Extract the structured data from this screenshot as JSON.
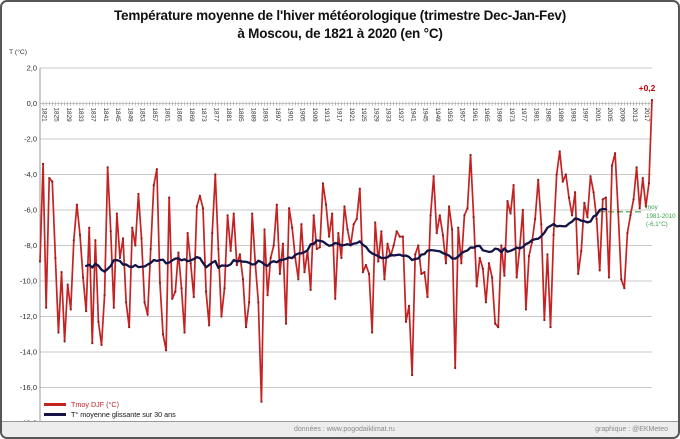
{
  "title": {
    "line1": "Température moyenne de l'hiver météorologique (trimestre Dec-Jan-Fev)",
    "line2": "à Moscou, de 1821 à 2020 (en °C)"
  },
  "y_unit_label": "T (°C)",
  "footer": {
    "left": "données : www.pogodaiklimat.ru",
    "right": "graphique : @EKMeteo"
  },
  "legend": {
    "items": [
      {
        "label": "Tmoy DJF (°C)",
        "color": "#c42323"
      },
      {
        "label": "T° moyenne glissante sur 30 ans",
        "color": "#131347"
      }
    ]
  },
  "chart_data": {
    "type": "line",
    "title": "Température moyenne de l'hiver météorologique (trimestre Dec-Jan-Fev) à Moscou, de 1821 à 2020 (en °C)",
    "grid": "horizontal",
    "legend_position": "bottom-left",
    "x_start": 1821,
    "x_end": 2020,
    "x_tick_step": 4,
    "x_tick_labels": [
      "1821",
      "1825",
      "1829",
      "1833",
      "1837",
      "1841",
      "1845",
      "1849",
      "1853",
      "1857",
      "1861",
      "1865",
      "1869",
      "1873",
      "1877",
      "1881",
      "1885",
      "1889",
      "1893",
      "1897",
      "1901",
      "1905",
      "1909",
      "1913",
      "1917",
      "1921",
      "1925",
      "1929",
      "1933",
      "1937",
      "1941",
      "1945",
      "1949",
      "1953",
      "1957",
      "1961",
      "1965",
      "1969",
      "1973",
      "1977",
      "1981",
      "1985",
      "1989",
      "1993",
      "1997",
      "2001",
      "2005",
      "2009",
      "2013",
      "2017"
    ],
    "ylim": [
      -18,
      2
    ],
    "y_tick_step": 2,
    "y_tick_labels": [
      "2,0",
      "0,0",
      "-2,0",
      "-4,0",
      "-6,0",
      "-8,0",
      "-10,0",
      "-12,0",
      "-14,0",
      "-16,0",
      "-18,0"
    ],
    "series": [
      {
        "name": "Tmoy DJF (°C)",
        "color": "#c42323",
        "marker_color": "#8f1a1a",
        "values": [
          -8.9,
          -3.4,
          -11.5,
          -4.2,
          -4.4,
          -8.7,
          -12.9,
          -9.5,
          -13.4,
          -10.2,
          -11.6,
          -7.7,
          -5.7,
          -7.4,
          -9.8,
          -11.7,
          -7.0,
          -13.5,
          -7.7,
          -12.3,
          -13.6,
          -10.8,
          -3.6,
          -7.2,
          -11.5,
          -6.2,
          -8.7,
          -7.6,
          -11.2,
          -12.6,
          -7.0,
          -8.0,
          -5.1,
          -7.6,
          -11.2,
          -11.9,
          -8.2,
          -4.6,
          -3.7,
          -10.1,
          -13.0,
          -13.9,
          -5.3,
          -11.0,
          -10.6,
          -8.4,
          -10.4,
          -12.9,
          -7.3,
          -9.0,
          -10.9,
          -5.8,
          -5.2,
          -5.9,
          -10.6,
          -12.5,
          -7.3,
          -4.0,
          -8.2,
          -12.0,
          -10.4,
          -6.3,
          -8.3,
          -6.2,
          -9.1,
          -8.5,
          -9.9,
          -12.6,
          -11.2,
          -6.2,
          -9.0,
          -11.2,
          -16.8,
          -7.1,
          -10.8,
          -8.7,
          -8.0,
          -5.7,
          -9.6,
          -7.9,
          -12.4,
          -5.9,
          -7.0,
          -8.7,
          -9.9,
          -6.8,
          -9.5,
          -8.3,
          -10.5,
          -6.3,
          -8.2,
          -8.1,
          -4.5,
          -5.7,
          -7.5,
          -6.2,
          -11.0,
          -7.3,
          -8.7,
          -5.8,
          -7.1,
          -8.0,
          -6.8,
          -6.5,
          -4.8,
          -9.5,
          -9.1,
          -9.6,
          -12.9,
          -6.7,
          -8.9,
          -7.2,
          -9.9,
          -7.9,
          -8.6,
          -8.0,
          -7.2,
          -7.5,
          -7.5,
          -12.3,
          -11.4,
          -15.3,
          -8.5,
          -8.0,
          -9.6,
          -9.5,
          -10.9,
          -6.3,
          -4.1,
          -7.3,
          -6.3,
          -7.4,
          -9.0,
          -5.8,
          -7.1,
          -14.9,
          -7.0,
          -9.0,
          -6.3,
          -5.9,
          -2.9,
          -6.4,
          -10.3,
          -8.7,
          -9.3,
          -11.2,
          -9.0,
          -9.8,
          -12.4,
          -12.6,
          -8.0,
          -9.7,
          -5.5,
          -6.2,
          -4.6,
          -9.8,
          -8.1,
          -6.0,
          -11.6,
          -8.6,
          -7.8,
          -6.5,
          -4.3,
          -6.8,
          -12.2,
          -8.5,
          -12.6,
          -7.4,
          -4.0,
          -2.7,
          -4.4,
          -4.0,
          -5.3,
          -6.3,
          -5.0,
          -9.6,
          -8.3,
          -5.6,
          -6.4,
          -4.1,
          -5.0,
          -6.5,
          -9.4,
          -5.4,
          -5.3,
          -9.8,
          -3.5,
          -2.8,
          -6.1,
          -9.9,
          -10.4,
          -7.3,
          -6.3,
          -5.4,
          -3.6,
          -5.9,
          -4.2,
          -5.8,
          -4.5,
          0.2
        ]
      },
      {
        "name": "T° moyenne glissante sur 30 ans",
        "color": "#131347",
        "derived": "30-year centered moving average of Tmoy DJF"
      }
    ],
    "annotations": {
      "last_value_label": "+0,2",
      "last_value": 0.2,
      "reference_line": {
        "value": -6.1,
        "color": "#3aa64a",
        "label_line1": "moy",
        "label_line2": "1981-2010",
        "label_line3": "(-6,1°C)"
      }
    }
  }
}
